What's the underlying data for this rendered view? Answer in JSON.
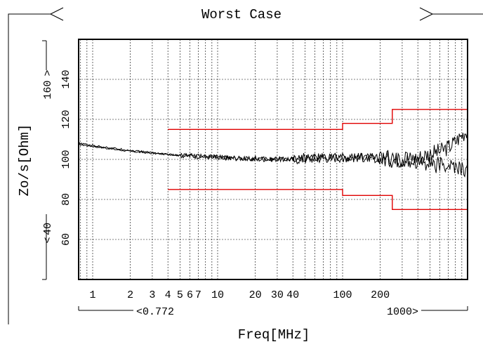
{
  "chart_data": {
    "type": "line",
    "title": "Worst Case",
    "xlabel": "Freq[MHz]",
    "ylabel": "Zo/s[Ohm]",
    "x_scale": "log",
    "xlim": [
      0.772,
      1000
    ],
    "ylim": [
      40,
      160
    ],
    "grid": true,
    "x_ticks": [
      1,
      2,
      3,
      4,
      5,
      6,
      7,
      10,
      20,
      30,
      40,
      100,
      200
    ],
    "x_tick_labels": [
      "1",
      "2",
      "3",
      "4",
      "5",
      "6",
      "7",
      "10",
      "20",
      "30",
      "40",
      "100",
      "200"
    ],
    "y_ticks": [
      60,
      80,
      100,
      120,
      140
    ],
    "y_tick_labels": [
      "60",
      "80",
      "100",
      "120",
      "140"
    ],
    "x_range_labels": {
      "min": "0.772",
      "max": "1000"
    },
    "y_range_labels": {
      "min": "40",
      "max": "160"
    },
    "limit_color": "#e00000",
    "trace_color": "#000000",
    "limits": [
      {
        "points": [
          [
            4,
            115
          ],
          [
            100,
            115
          ],
          [
            100,
            118
          ],
          [
            250,
            118
          ],
          [
            250,
            125
          ],
          [
            1000,
            125
          ]
        ]
      },
      {
        "points": [
          [
            4,
            85
          ],
          [
            100,
            85
          ],
          [
            100,
            82
          ],
          [
            250,
            82
          ],
          [
            250,
            75
          ],
          [
            1000,
            75
          ]
        ]
      }
    ],
    "series": [
      {
        "x": [
          0.772,
          1,
          1.5,
          2,
          3,
          4,
          5,
          7,
          10,
          15,
          20,
          30,
          40,
          60,
          100,
          150,
          200,
          300,
          400,
          500,
          600,
          700,
          800,
          900,
          1000
        ],
        "y": [
          107.5,
          106.5,
          105,
          104,
          103,
          102.5,
          102,
          101.5,
          101,
          100.5,
          100,
          100,
          100,
          100.5,
          101,
          101,
          100,
          100,
          101,
          103,
          104,
          106,
          109,
          112,
          115
        ]
      },
      {
        "x": [
          0.772,
          1,
          1.5,
          2,
          3,
          4,
          5,
          7,
          10,
          15,
          20,
          30,
          40,
          60,
          100,
          150,
          200,
          300,
          400,
          500,
          600,
          700,
          800,
          900,
          1000
        ],
        "y": [
          108,
          107,
          105.5,
          104.5,
          103.5,
          102.5,
          102,
          101.5,
          101,
          100.5,
          100.5,
          100,
          100.5,
          101,
          101,
          101,
          100.5,
          100,
          99,
          98,
          97,
          97,
          96,
          95,
          94
        ]
      }
    ]
  }
}
